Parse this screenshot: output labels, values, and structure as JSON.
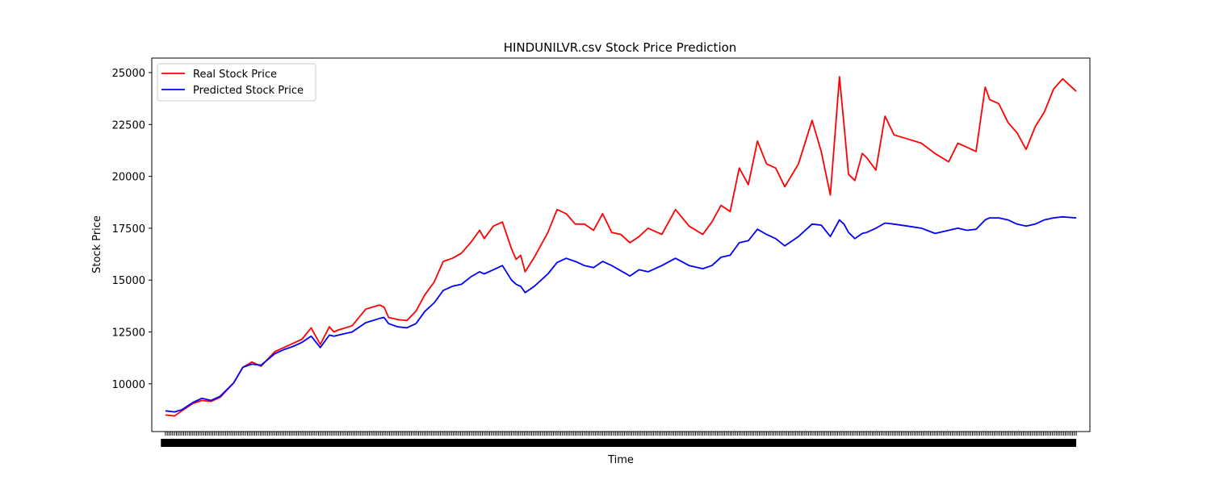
{
  "chart_data": {
    "type": "line",
    "title": "HINDUNILVR.csv Stock Price Prediction",
    "xlabel": "Time",
    "ylabel": "Stock Price",
    "ylim": [
      7700,
      25700
    ],
    "xlim": [
      -15,
      1015
    ],
    "grid": false,
    "legend_position": "top-left",
    "y_ticks": [
      10000,
      12500,
      15000,
      17500,
      20000,
      22500,
      25000
    ],
    "y_tick_labels": [
      "10000",
      "12500",
      "15000",
      "17500",
      "20000",
      "22500",
      "25000"
    ],
    "x_tick_labels_overlapping": true,
    "x": [
      0,
      10,
      18,
      30,
      40,
      50,
      60,
      75,
      85,
      95,
      105,
      120,
      130,
      140,
      150,
      160,
      170,
      180,
      185,
      190,
      205,
      220,
      235,
      240,
      245,
      255,
      265,
      275,
      285,
      295,
      305,
      315,
      325,
      335,
      345,
      350,
      360,
      370,
      380,
      385,
      390,
      395,
      405,
      420,
      430,
      440,
      450,
      460,
      470,
      480,
      490,
      500,
      510,
      520,
      530,
      545,
      560,
      575,
      590,
      600,
      610,
      620,
      630,
      640,
      650,
      660,
      670,
      680,
      695,
      710,
      720,
      730,
      740,
      745,
      750,
      757,
      765,
      770,
      780,
      790,
      800,
      815,
      830,
      845,
      860,
      870,
      880,
      890,
      900,
      905,
      915,
      925,
      935,
      945,
      955,
      965,
      975,
      985,
      1000
    ],
    "series": [
      {
        "name": "Real Stock Price",
        "color": "#ff0000",
        "values": [
          8500,
          8450,
          8700,
          9050,
          9200,
          9150,
          9350,
          10050,
          10800,
          11050,
          10850,
          11550,
          11750,
          11950,
          12150,
          12700,
          11900,
          12750,
          12500,
          12600,
          12800,
          13600,
          13800,
          13700,
          13200,
          13100,
          13050,
          13500,
          14300,
          14900,
          15900,
          16050,
          16300,
          16800,
          17400,
          17000,
          17600,
          17800,
          16500,
          16000,
          16200,
          15400,
          16100,
          17300,
          18400,
          18200,
          17700,
          17700,
          17400,
          18200,
          17300,
          17200,
          16800,
          17100,
          17500,
          17200,
          18400,
          17600,
          17200,
          17800,
          18600,
          18300,
          20400,
          19600,
          21700,
          20600,
          20400,
          19500,
          20600,
          22700,
          21200,
          19100,
          24800,
          22500,
          20100,
          19800,
          21100,
          20900,
          20300,
          22900,
          22000,
          21800,
          21600,
          21100,
          20700,
          21600,
          21400,
          21200,
          24300,
          23700,
          23500,
          22600,
          22100,
          21300,
          22400,
          23100,
          24200,
          24700,
          24100
        ]
      },
      {
        "name": "Predicted Stock Price",
        "color": "#0000ff",
        "values": [
          8700,
          8650,
          8750,
          9100,
          9300,
          9200,
          9400,
          10050,
          10800,
          10950,
          10900,
          11450,
          11650,
          11800,
          12000,
          12300,
          11750,
          12350,
          12300,
          12350,
          12500,
          12950,
          13150,
          13200,
          12900,
          12750,
          12700,
          12900,
          13500,
          13900,
          14500,
          14700,
          14800,
          15150,
          15400,
          15300,
          15500,
          15700,
          15000,
          14800,
          14700,
          14400,
          14700,
          15300,
          15850,
          16050,
          15900,
          15700,
          15600,
          15900,
          15700,
          15450,
          15200,
          15500,
          15400,
          15700,
          16050,
          15700,
          15550,
          15700,
          16100,
          16200,
          16800,
          16900,
          17450,
          17200,
          17000,
          16650,
          17100,
          17700,
          17650,
          17100,
          17900,
          17700,
          17300,
          17000,
          17250,
          17300,
          17500,
          17750,
          17700,
          17600,
          17500,
          17250,
          17400,
          17500,
          17400,
          17450,
          17900,
          18000,
          18000,
          17900,
          17700,
          17600,
          17700,
          17900,
          18000,
          18050,
          18000
        ]
      }
    ]
  }
}
